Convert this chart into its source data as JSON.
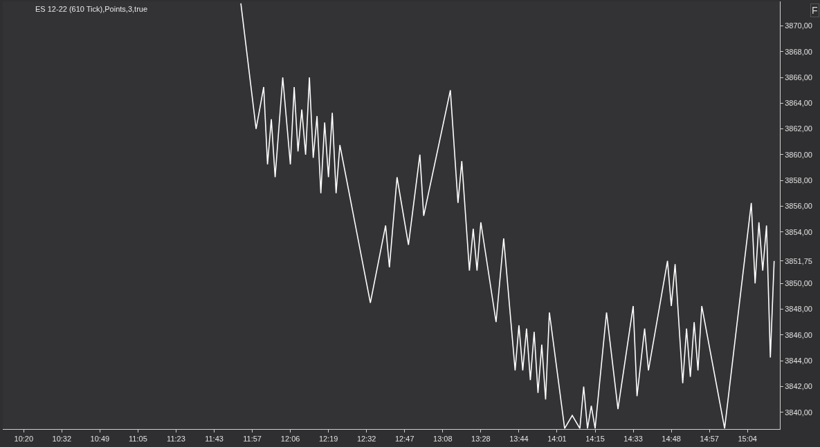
{
  "chart_data": {
    "type": "line",
    "title": "ES 12-22 (610 Tick),Points,3,true",
    "annotations": [
      "F"
    ],
    "categories": [
      null,
      null,
      null,
      null,
      null,
      "10:20",
      null,
      null,
      null,
      null,
      null,
      null,
      null,
      null,
      null,
      "10:32",
      null,
      null,
      null,
      null,
      null,
      null,
      null,
      null,
      null,
      "10:49",
      null,
      null,
      null,
      null,
      null,
      null,
      null,
      null,
      null,
      "11:05",
      null,
      null,
      null,
      null,
      null,
      null,
      null,
      null,
      null,
      "11:23",
      null,
      null,
      null,
      null,
      null,
      null,
      null,
      null,
      null,
      "11:43",
      null,
      null,
      null,
      null,
      null,
      null,
      null,
      null,
      null,
      "11:57",
      null,
      null,
      null,
      null,
      null,
      null,
      null,
      null,
      null,
      "12:06",
      null,
      null,
      null,
      null,
      null,
      null,
      null,
      null,
      null,
      "12:19",
      null,
      null,
      null,
      null,
      null,
      null,
      null,
      null,
      null,
      "12:32",
      null,
      null,
      null,
      null,
      null,
      null,
      null,
      null,
      null,
      "12:47",
      null,
      null,
      null,
      null,
      null,
      null,
      null,
      null,
      null,
      "13:08",
      null,
      null,
      null,
      null,
      null,
      null,
      null,
      null,
      null,
      "13:28",
      null,
      null,
      null,
      null,
      null,
      null,
      null,
      null,
      null,
      "13:44",
      null,
      null,
      null,
      null,
      null,
      null,
      null,
      null,
      null,
      "14:01",
      null,
      null,
      null,
      null,
      null,
      null,
      null,
      null,
      null,
      "14:15",
      null,
      null,
      null,
      null,
      null,
      null,
      null,
      null,
      null,
      "14:33",
      null,
      null,
      null,
      null,
      null,
      null,
      null,
      null,
      null,
      "14:48",
      null,
      null,
      null,
      null,
      null,
      null,
      null,
      null,
      null,
      "14:57",
      null,
      null,
      null,
      null,
      null,
      null,
      null,
      null,
      null,
      "15:04",
      null,
      null,
      null,
      null,
      null,
      null,
      null,
      null
    ],
    "series": [
      {
        "color": "#ffffff",
        "values": [
          null,
          null,
          null,
          null,
          null,
          null,
          null,
          null,
          null,
          null,
          null,
          null,
          null,
          null,
          null,
          null,
          null,
          null,
          null,
          null,
          null,
          null,
          null,
          null,
          null,
          null,
          null,
          null,
          null,
          null,
          null,
          null,
          null,
          null,
          null,
          null,
          null,
          null,
          null,
          null,
          null,
          null,
          null,
          null,
          null,
          null,
          null,
          null,
          null,
          null,
          null,
          null,
          null,
          null,
          null,
          null,
          null,
          null,
          null,
          null,
          null,
          null,
          3871.75,
          null,
          null,
          null,
          3862,
          null,
          3865.25,
          3859.25,
          3862.75,
          3858.25,
          null,
          3866,
          null,
          3859.25,
          3865.25,
          3860.25,
          3863.5,
          3860,
          3866,
          3859.75,
          3863,
          3857,
          3862.5,
          3858.25,
          3863.25,
          3857,
          3860.75,
          null,
          null,
          null,
          null,
          null,
          null,
          null,
          3848.5,
          null,
          null,
          null,
          3854.5,
          3851.25,
          null,
          3858.25,
          null,
          null,
          3853,
          null,
          null,
          3860,
          3855.25,
          null,
          null,
          null,
          null,
          null,
          null,
          3865,
          null,
          3856.25,
          3859.5,
          null,
          3851,
          3854.25,
          3851,
          3854.75,
          null,
          null,
          null,
          3847,
          null,
          3853.5,
          null,
          null,
          3843.25,
          3846.75,
          3843.25,
          3846.5,
          3842.5,
          3846.25,
          3841.5,
          3845.25,
          3841,
          3847.75,
          null,
          null,
          null,
          3838.75,
          null,
          3839.75,
          null,
          3838.75,
          3842,
          3838.75,
          3840.5,
          3838.75,
          null,
          null,
          3847.75,
          null,
          null,
          3840.25,
          null,
          null,
          null,
          3848.25,
          3841.25,
          null,
          3846.5,
          3843.25,
          null,
          null,
          null,
          null,
          3851.75,
          3848.25,
          3851.5,
          null,
          3842.25,
          3846.5,
          3842.75,
          3847,
          3843.25,
          3848.25,
          null,
          null,
          null,
          null,
          null,
          3838.75,
          null,
          null,
          null,
          null,
          null,
          null,
          3856.25,
          3850,
          3854.75,
          3851,
          3854.5,
          3844.25,
          3851.75,
          null
        ]
      }
    ],
    "ylim": [
      3838.7,
      3871.9
    ],
    "yticks": [
      {
        "value": 3840,
        "label": "3840,00"
      },
      {
        "value": 3842,
        "label": "3842,00"
      },
      {
        "value": 3844,
        "label": "3844,00"
      },
      {
        "value": 3846,
        "label": "3846,00"
      },
      {
        "value": 3848,
        "label": "3848,00"
      },
      {
        "value": 3850,
        "label": "3850,00"
      },
      {
        "value": 3851.75,
        "label": "3851,75"
      },
      {
        "value": 3854,
        "label": "3854,00"
      },
      {
        "value": 3856,
        "label": "3856,00"
      },
      {
        "value": 3858,
        "label": "3858,00"
      },
      {
        "value": 3860,
        "label": "3860,00"
      },
      {
        "value": 3862,
        "label": "3862,00"
      },
      {
        "value": 3864,
        "label": "3864,00"
      },
      {
        "value": 3866,
        "label": "3866,00"
      },
      {
        "value": 3868,
        "label": "3868,00"
      },
      {
        "value": 3870,
        "label": "3870,00"
      }
    ],
    "grid": false,
    "marker": "none",
    "line_style": "solid"
  }
}
